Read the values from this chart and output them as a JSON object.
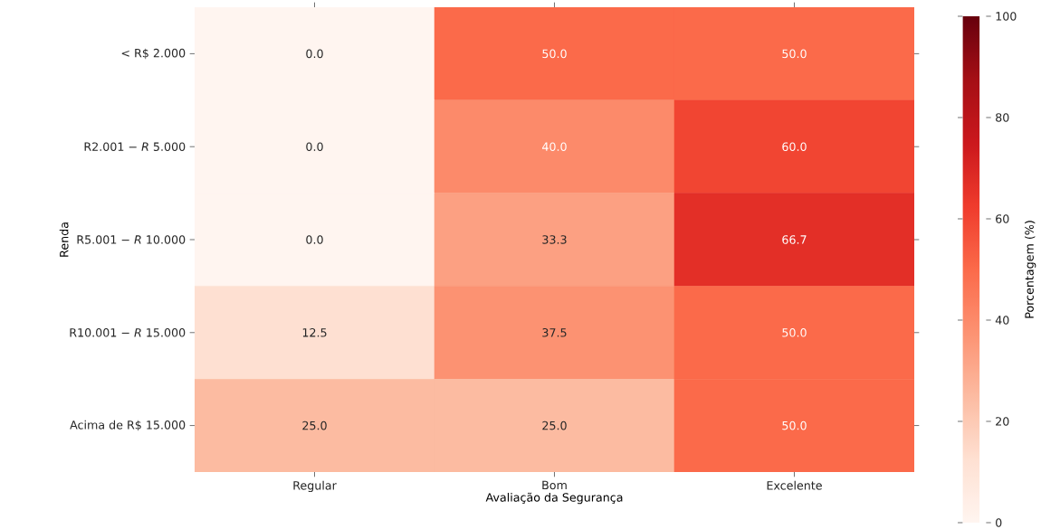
{
  "chart_data": {
    "type": "heatmap",
    "xlabel": "Avaliação da Segurança",
    "ylabel": "Renda",
    "clabel": "Porcentagem (%)",
    "categories": [
      "Regular",
      "Bom",
      "Excelente"
    ],
    "y_categories": [
      "< R$ 2.000",
      "R2.001 − *R* 5.000",
      "R5.001 − *R* 10.000",
      "R10.001 − *R* 15.000",
      "Acima de R$ 15.000"
    ],
    "cells": [
      [
        0.0,
        50.0,
        50.0
      ],
      [
        0.0,
        40.0,
        60.0
      ],
      [
        0.0,
        33.3,
        66.7
      ],
      [
        12.5,
        37.5,
        50.0
      ],
      [
        25.0,
        25.0,
        50.0
      ]
    ],
    "cell_labels": [
      [
        "0.0",
        "50.0",
        "50.0"
      ],
      [
        "0.0",
        "40.0",
        "60.0"
      ],
      [
        "0.0",
        "33.3",
        "66.7"
      ],
      [
        "12.5",
        "37.5",
        "50.0"
      ],
      [
        "25.0",
        "25.0",
        "50.0"
      ]
    ],
    "clim": [
      0,
      100
    ],
    "cticks": [
      0,
      20,
      40,
      60,
      80,
      100
    ]
  }
}
